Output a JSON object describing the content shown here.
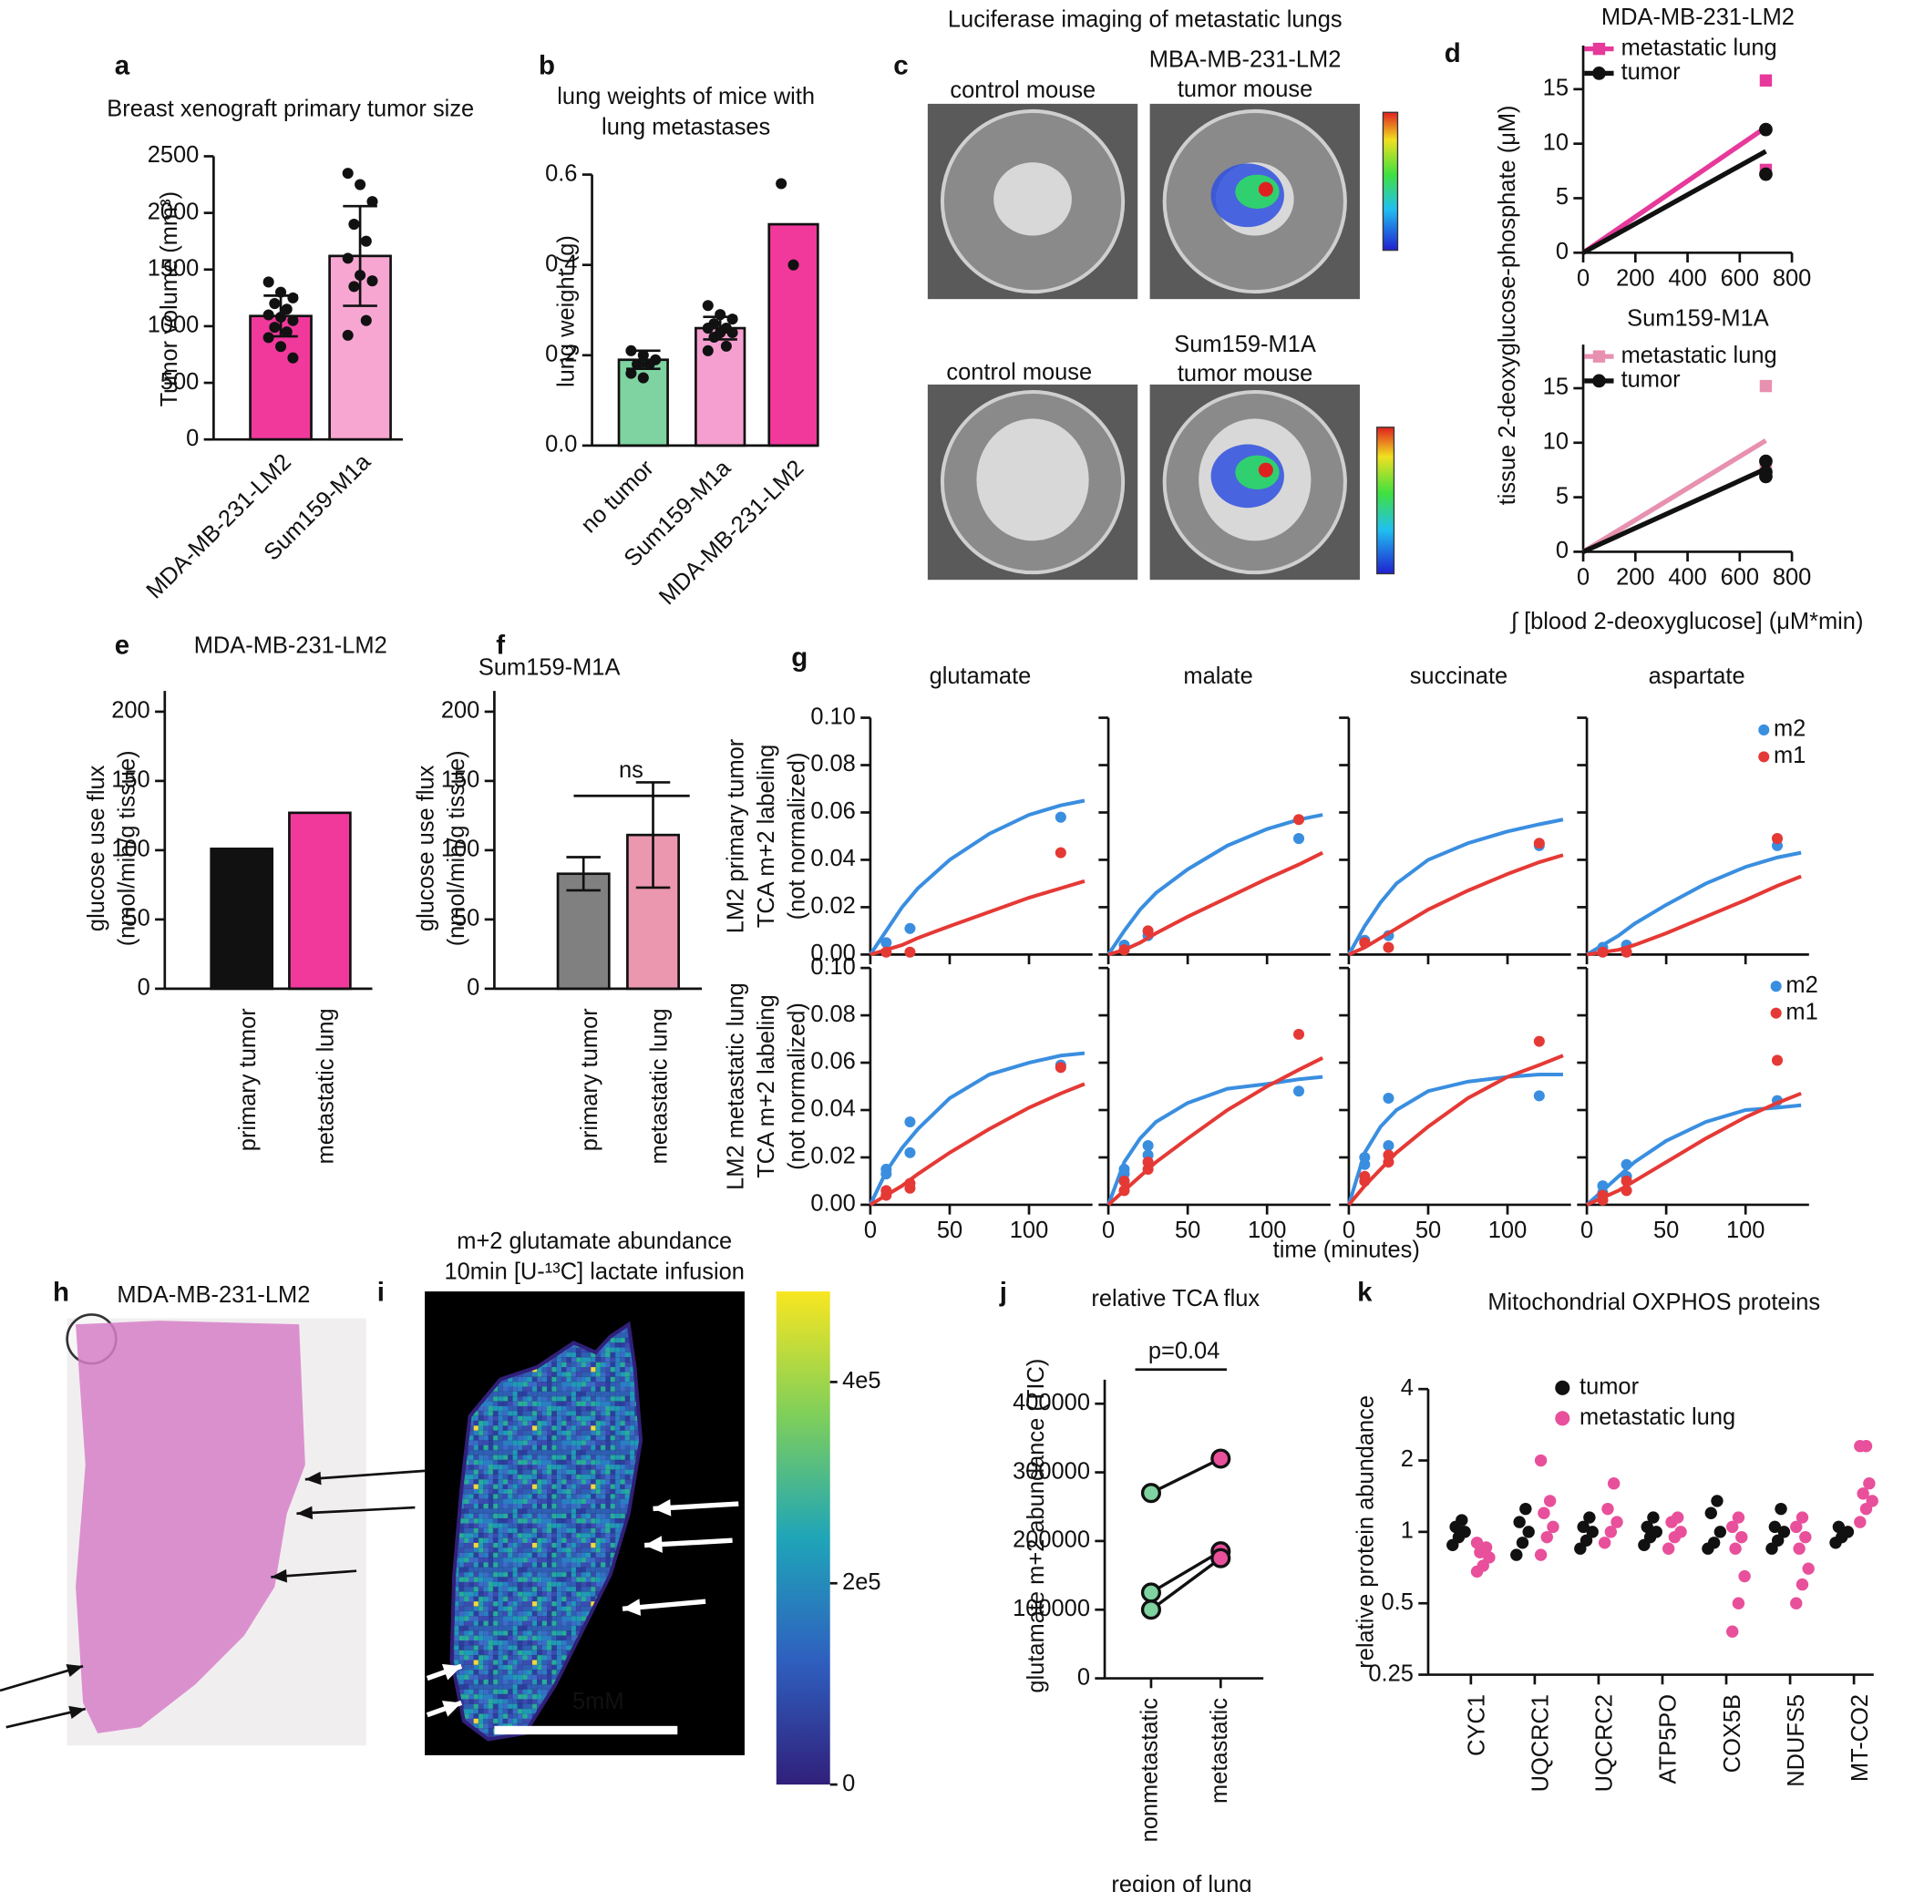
{
  "chart_data": [
    {
      "type": "bar",
      "label": "a",
      "title": [
        "Breast xenograft primary tumor size"
      ],
      "ylabel": [
        "Tumor volume (mm³)"
      ],
      "categories": [
        "MDA-MB-231-LM2",
        "Sum159-M1a"
      ],
      "values": [
        1090,
        1620
      ],
      "errors": [
        180,
        440
      ],
      "colors": [
        "#f0399b",
        "#f7a6d2"
      ],
      "points": [
        [
          1390,
          1300,
          1250,
          1200,
          1150,
          1100,
          1080,
          1050,
          990,
          950,
          900,
          820,
          720
        ],
        [
          2350,
          2250,
          2100,
          1900,
          1750,
          1600,
          1450,
          1400,
          1350,
          1050,
          920
        ]
      ],
      "ylim": [
        0,
        2500
      ],
      "yticks": [
        0,
        500,
        1000,
        1500,
        2000,
        2500
      ]
    },
    {
      "type": "bar",
      "label": "b",
      "title": [
        "lung weights of mice with",
        "lung metastases"
      ],
      "ylabel": [
        "lung weight (g)"
      ],
      "categories": [
        "no tumor",
        "Sum159-M1a",
        "MDA-MB-231-LM2"
      ],
      "values": [
        0.19,
        0.26,
        0.49
      ],
      "errors": [
        0.02,
        0.025,
        null
      ],
      "colors": [
        "#7ed3a0",
        "#f59fd0",
        "#f0399b"
      ],
      "points": [
        [
          0.21,
          0.2,
          0.19,
          0.18,
          0.18,
          0.16,
          0.15
        ],
        [
          0.31,
          0.29,
          0.28,
          0.27,
          0.26,
          0.26,
          0.25,
          0.25,
          0.24,
          0.22,
          0.21
        ],
        [
          0.58,
          0.4
        ]
      ],
      "ylim": [
        0,
        0.6
      ],
      "yticks": [
        {
          "value": 0,
          "label": "0.0"
        },
        0.2,
        0.4,
        0.6
      ]
    },
    {
      "type": "image",
      "label": "c",
      "title": [
        "Luciferase imaging of metastatic lungs"
      ],
      "captions": [
        [
          "control mouse"
        ],
        [
          "MBA-MB-231-LM2",
          "tumor mouse"
        ],
        [
          "control mouse"
        ],
        [
          "Sum159-M1A",
          "tumor mouse"
        ]
      ]
    },
    {
      "type": "regression",
      "label": "d",
      "title": [
        "MDA-MB-231-LM2"
      ],
      "ylabel": [
        "tissue 2-deoxyglucose-phosphate (μM)"
      ],
      "xlim": [
        0,
        800
      ],
      "xticks": [
        0,
        200,
        400,
        600,
        800
      ],
      "ylim": [
        0,
        19
      ],
      "yticks": [
        0,
        5,
        10,
        15
      ],
      "series": [
        {
          "name": "metastatic lung",
          "color": "#e6399b",
          "marker": "square",
          "x": [
            0,
            700
          ],
          "values": [
            0,
            11.5
          ],
          "points": {
            "x": [
              700,
              700
            ],
            "values": [
              15.8,
              7.6
            ]
          }
        },
        {
          "name": "tumor",
          "color": "#111111",
          "marker": "circle",
          "x": [
            0,
            700
          ],
          "values": [
            0,
            9.3
          ],
          "points": {
            "x": [
              700,
              700
            ],
            "values": [
              11.3,
              7.2
            ]
          }
        }
      ]
    },
    {
      "type": "regression",
      "title": [
        "Sum159-M1A"
      ],
      "xlabel": "∫ [blood 2-deoxyglucose] (μM*min)",
      "xlim": [
        0,
        800
      ],
      "xticks": [
        0,
        200,
        400,
        600,
        800
      ],
      "ylim": [
        0,
        19
      ],
      "yticks": [
        0,
        5,
        10,
        15
      ],
      "series": [
        {
          "name": "metastatic lung",
          "color": "#e890b0",
          "marker": "square",
          "x": [
            0,
            700
          ],
          "values": [
            0,
            10.2
          ],
          "points": {
            "x": [
              700,
              700,
              700
            ],
            "values": [
              15.2,
              8.0,
              7.5
            ]
          }
        },
        {
          "name": "tumor",
          "color": "#111111",
          "marker": "circle",
          "x": [
            0,
            700
          ],
          "values": [
            0,
            7.6
          ],
          "points": {
            "x": [
              700,
              700,
              700
            ],
            "values": [
              8.3,
              7.3,
              6.9
            ]
          }
        }
      ]
    },
    {
      "type": "bar",
      "label": "e",
      "title": [
        "MDA-MB-231-LM2"
      ],
      "ylabel": [
        "glucose use flux",
        "(nmol/min/g tissue)"
      ],
      "categories": [
        "primary tumor",
        "metastatic lung"
      ],
      "values": [
        101,
        127
      ],
      "colors": [
        "#111111",
        "#f0399b"
      ],
      "ylim": [
        0,
        215
      ],
      "yticks": [
        0,
        50,
        100,
        150,
        200
      ]
    },
    {
      "type": "bar",
      "label": "f",
      "title": [
        "Sum159-M1A"
      ],
      "ylabel": [
        "glucose use flux",
        "(nmol/min/g tissue)"
      ],
      "categories": [
        "primary tumor",
        "metastatic lung"
      ],
      "values": [
        83,
        111
      ],
      "errors": [
        12,
        38
      ],
      "colors": [
        "#808080",
        "#eb97b0"
      ],
      "annotation": "ns",
      "ylim": [
        0,
        215
      ],
      "yticks": [
        0,
        50,
        100,
        150,
        200
      ]
    },
    {
      "type": "line",
      "label": "g",
      "columns": [
        "glutamate",
        "malate",
        "succinate",
        "aspartate"
      ],
      "ylabels": [
        [
          "LM2 primary tumor",
          "TCA m+2 labeling",
          "(not normalized)"
        ],
        [
          "LM2 metastatic lung",
          "TCA m+2 labeling",
          "(not normalized)"
        ]
      ],
      "xlabel": "time (minutes)",
      "xlim": [
        0,
        140
      ],
      "xticks": [
        0,
        50,
        100
      ],
      "ylim": [
        0,
        0.1
      ],
      "yticks": [
        {
          "value": 0,
          "label": "0.00"
        },
        0.02,
        0.04,
        0.06,
        0.08,
        {
          "value": 0.1,
          "label": "0.10"
        }
      ],
      "series": [
        {
          "name": "m2",
          "color": "#3a8ee0"
        },
        {
          "name": "m1",
          "color": "#e53935"
        }
      ],
      "fit_x": [
        0,
        10,
        20,
        30,
        50,
        75,
        100,
        120,
        135
      ],
      "panels": [
        [
          [
            {
              "fit": [
                0,
                0.01,
                0.02,
                0.028,
                0.04,
                0.051,
                0.059,
                0.063,
                0.065
              ],
              "x": [
                10,
                25,
                120
              ],
              "values": [
                0.005,
                0.011,
                0.058
              ]
            },
            {
              "fit": [
                0,
                0.002,
                0.004,
                0.007,
                0.012,
                0.018,
                0.024,
                0.028,
                0.031
              ],
              "x": [
                10,
                25,
                120
              ],
              "values": [
                0.001,
                0.001,
                0.043
              ]
            }
          ],
          [
            {
              "fit": [
                0,
                0.01,
                0.019,
                0.026,
                0.036,
                0.046,
                0.053,
                0.057,
                0.059
              ],
              "x": [
                10,
                25,
                120
              ],
              "values": [
                0.004,
                0.008,
                0.049
              ]
            },
            {
              "fit": [
                0,
                0.002,
                0.005,
                0.009,
                0.016,
                0.024,
                0.032,
                0.038,
                0.043
              ],
              "x": [
                10,
                25,
                120
              ],
              "values": [
                0.002,
                0.01,
                0.057
              ]
            }
          ],
          [
            {
              "fit": [
                0,
                0.012,
                0.022,
                0.03,
                0.04,
                0.047,
                0.052,
                0.055,
                0.057
              ],
              "x": [
                10,
                25,
                120
              ],
              "values": [
                0.006,
                0.008,
                0.046
              ]
            },
            {
              "fit": [
                0,
                0.003,
                0.007,
                0.011,
                0.019,
                0.027,
                0.034,
                0.039,
                0.042
              ],
              "x": [
                10,
                25,
                120
              ],
              "values": [
                0.005,
                0.003,
                0.047
              ]
            }
          ],
          [
            {
              "fit": [
                0,
                0.004,
                0.008,
                0.013,
                0.021,
                0.03,
                0.037,
                0.041,
                0.043
              ],
              "x": [
                10,
                25,
                120
              ],
              "values": [
                0.003,
                0.004,
                0.046
              ]
            },
            {
              "fit": [
                0,
                0.001,
                0.002,
                0.004,
                0.009,
                0.016,
                0.023,
                0.029,
                0.033
              ],
              "x": [
                10,
                25,
                120
              ],
              "values": [
                0.001,
                0.001,
                0.049
              ]
            }
          ]
        ],
        [
          [
            {
              "fit": [
                0,
                0.014,
                0.024,
                0.032,
                0.045,
                0.055,
                0.06,
                0.063,
                0.064
              ],
              "x": [
                10,
                10,
                25,
                25,
                120
              ],
              "values": [
                0.013,
                0.015,
                0.022,
                0.035,
                0.059
              ]
            },
            {
              "fit": [
                0,
                0.004,
                0.008,
                0.013,
                0.022,
                0.032,
                0.041,
                0.047,
                0.051
              ],
              "x": [
                10,
                10,
                25,
                25,
                120
              ],
              "values": [
                0.004,
                0.006,
                0.007,
                0.009,
                0.058
              ]
            }
          ],
          [
            {
              "fit": [
                0,
                0.018,
                0.028,
                0.035,
                0.043,
                0.049,
                0.051,
                0.053,
                0.054
              ],
              "x": [
                10,
                10,
                25,
                25,
                120
              ],
              "values": [
                0.013,
                0.015,
                0.021,
                0.025,
                0.048
              ]
            },
            {
              "fit": [
                0,
                0.006,
                0.012,
                0.018,
                0.028,
                0.04,
                0.05,
                0.057,
                0.062
              ],
              "x": [
                10,
                10,
                25,
                25,
                120
              ],
              "values": [
                0.006,
                0.01,
                0.015,
                0.018,
                0.072
              ]
            }
          ],
          [
            {
              "fit": [
                0,
                0.022,
                0.033,
                0.04,
                0.048,
                0.052,
                0.054,
                0.055,
                0.055
              ],
              "x": [
                10,
                10,
                25,
                25,
                120
              ],
              "values": [
                0.017,
                0.02,
                0.025,
                0.045,
                0.046
              ]
            },
            {
              "fit": [
                0,
                0.008,
                0.015,
                0.022,
                0.033,
                0.045,
                0.054,
                0.059,
                0.063
              ],
              "x": [
                10,
                10,
                25,
                25,
                120
              ],
              "values": [
                0.01,
                0.012,
                0.018,
                0.021,
                0.069
              ]
            }
          ],
          [
            {
              "fit": [
                0,
                0.006,
                0.012,
                0.018,
                0.027,
                0.035,
                0.04,
                0.041,
                0.042
              ],
              "x": [
                10,
                10,
                25,
                25,
                120
              ],
              "values": [
                0.005,
                0.008,
                0.012,
                0.017,
                0.044
              ]
            },
            {
              "fit": [
                0,
                0.003,
                0.006,
                0.01,
                0.018,
                0.028,
                0.037,
                0.043,
                0.047
              ],
              "x": [
                10,
                10,
                25,
                25,
                120
              ],
              "values": [
                0.002,
                0.004,
                0.006,
                0.01,
                0.061
              ]
            }
          ]
        ]
      ]
    },
    {
      "type": "image",
      "label": "h",
      "title": [
        "MDA-MB-231-LM2"
      ]
    },
    {
      "type": "heatmap",
      "label": "i",
      "title": [
        "m+2 glutamate abundance",
        "10min [U-¹³C] lactate infusion"
      ],
      "scalebar": "5mM",
      "clim": [
        0,
        490000
      ],
      "cticks": [
        0,
        {
          "value": 200000,
          "label": "2e5"
        },
        {
          "value": 400000,
          "label": "4e5"
        }
      ]
    },
    {
      "type": "paired",
      "label": "j",
      "title": [
        "relative TCA flux"
      ],
      "ylabel": [
        "glutamate m+2 abundance (TIC)"
      ],
      "xlabel": "region of lung",
      "categories": [
        "nonmetastatic",
        "metastatic"
      ],
      "colors": [
        "#7fd3a0",
        "#e8509b"
      ],
      "pairs": [
        [
          270000,
          320000
        ],
        [
          125000,
          185000
        ],
        [
          100000,
          175000
        ]
      ],
      "annotation": "p=0.04",
      "ylim": [
        0,
        435000
      ],
      "yticks": [
        0,
        100000,
        200000,
        300000,
        400000
      ]
    },
    {
      "type": "strip",
      "label": "k",
      "title": [
        "Mitochondrial OXPHOS proteins"
      ],
      "ylabel": [
        "relative protein abundance"
      ],
      "log": 2,
      "categories": [
        "CYC1",
        "UQCRC1",
        "UQCRC2",
        "ATP5PO",
        "COX5B",
        "NDUFS5",
        "MT-CO2"
      ],
      "series": [
        {
          "name": "tumor",
          "color": "#111111",
          "values": [
            [
              0.88,
              0.95,
              1.0,
              1.05,
              1.12
            ],
            [
              0.8,
              0.9,
              1.0,
              1.1,
              1.25
            ],
            [
              0.85,
              0.92,
              1.0,
              1.05,
              1.15
            ],
            [
              0.88,
              0.95,
              1.0,
              1.05,
              1.15
            ],
            [
              0.85,
              0.9,
              1.0,
              1.2,
              1.35
            ],
            [
              0.85,
              0.92,
              1.0,
              1.05,
              1.25
            ],
            [
              0.9,
              0.95,
              1.0,
              1.05
            ]
          ]
        },
        {
          "name": "metastatic lung",
          "color": "#e8509b",
          "values": [
            [
              0.68,
              0.72,
              0.78,
              0.82,
              0.86,
              0.9
            ],
            [
              0.8,
              0.95,
              1.05,
              1.2,
              1.35,
              2.0
            ],
            [
              0.9,
              1.0,
              1.1,
              1.25,
              1.6
            ],
            [
              0.85,
              0.95,
              1.0,
              1.1,
              1.15
            ],
            [
              0.38,
              0.5,
              0.65,
              0.85,
              0.95,
              1.05,
              1.15
            ],
            [
              0.5,
              0.6,
              0.7,
              0.85,
              0.95,
              1.05,
              1.15
            ],
            [
              1.1,
              1.25,
              1.35,
              1.45,
              1.6,
              2.3,
              2.3
            ]
          ]
        }
      ],
      "ylim": [
        0.25,
        4
      ],
      "yticks": [
        0.25,
        0.5,
        1,
        2,
        4
      ]
    }
  ]
}
